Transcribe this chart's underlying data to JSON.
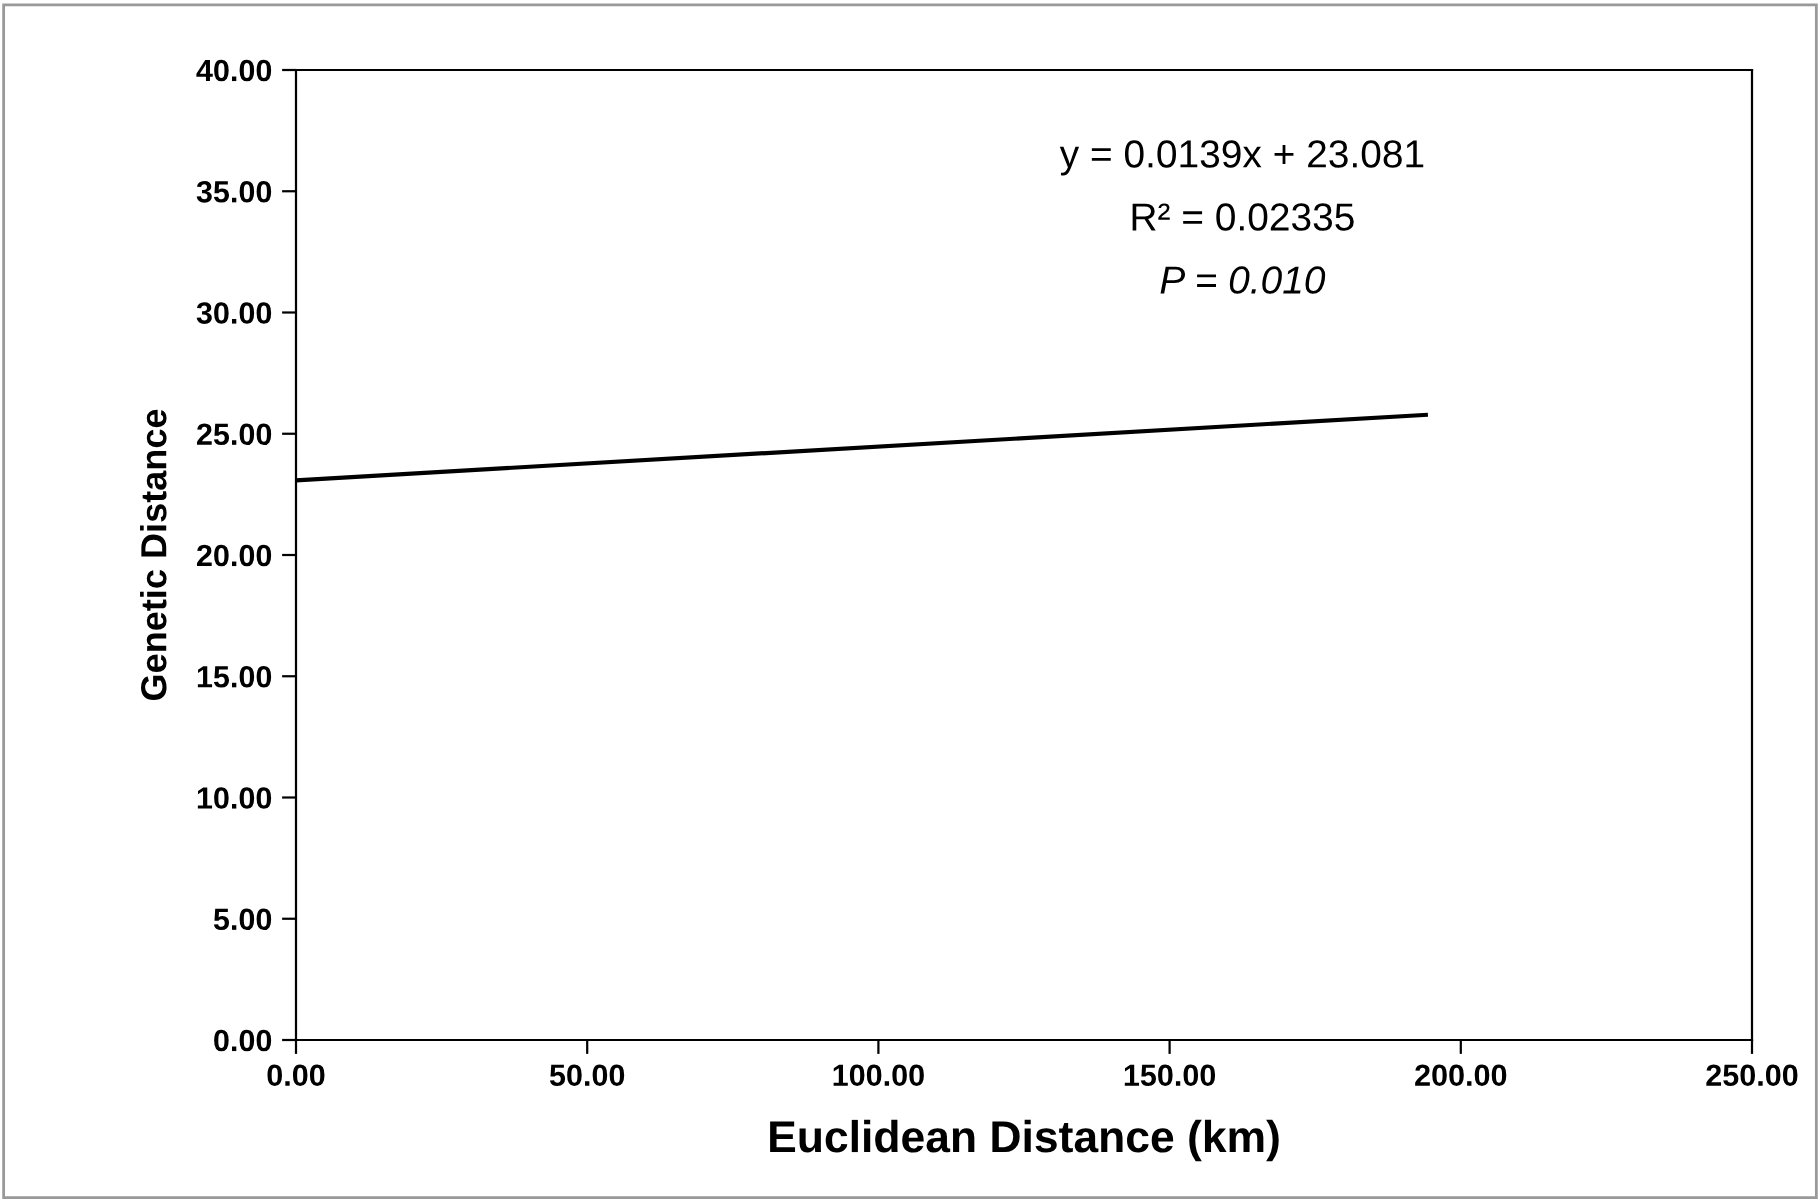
{
  "chart_data": {
    "type": "line",
    "xlabel": "Euclidean Distance (km)",
    "ylabel": "Genetic Distance",
    "series": [
      {
        "color": "#000000",
        "x": [
          0,
          194
        ],
        "values": [
          23.08,
          25.78
        ]
      }
    ],
    "annotations": [
      "y = 0.0139x + 23.081",
      "R² = 0.02335",
      "P = 0.010"
    ],
    "xlim": [
      0,
      250
    ],
    "ylim": [
      0,
      40
    ],
    "xticks": [
      {
        "value": 0,
        "label": "0.00"
      },
      {
        "value": 50,
        "label": "50.00"
      },
      {
        "value": 100,
        "label": "100.00"
      },
      {
        "value": 150,
        "label": "150.00"
      },
      {
        "value": 200,
        "label": "200.00"
      },
      {
        "value": 250,
        "label": "250.00"
      }
    ],
    "yticks": [
      {
        "value": 0,
        "label": "0.00"
      },
      {
        "value": 5,
        "label": "5.00"
      },
      {
        "value": 10,
        "label": "10.00"
      },
      {
        "value": 15,
        "label": "15.00"
      },
      {
        "value": 20,
        "label": "20.00"
      },
      {
        "value": 25,
        "label": "25.00"
      },
      {
        "value": 30,
        "label": "30.00"
      },
      {
        "value": 35,
        "label": "35.00"
      },
      {
        "value": 40,
        "label": "40.00"
      }
    ],
    "grid": false,
    "legend": false
  }
}
